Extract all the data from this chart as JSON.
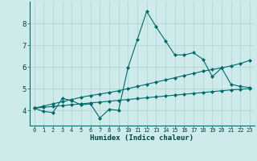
{
  "xlabel": "Humidex (Indice chaleur)",
  "ylabel": "",
  "bg_color": "#ceeaea",
  "line_color": "#006b6b",
  "grid_color": "#b8dada",
  "xlim": [
    -0.5,
    23.5
  ],
  "ylim": [
    3.3,
    9.0
  ],
  "yticks": [
    4,
    5,
    6,
    7,
    8
  ],
  "xticks": [
    0,
    1,
    2,
    3,
    4,
    5,
    6,
    7,
    8,
    9,
    10,
    11,
    12,
    13,
    14,
    15,
    16,
    17,
    18,
    19,
    20,
    21,
    22,
    23
  ],
  "line1_x": [
    0,
    1,
    2,
    3,
    4,
    5,
    6,
    7,
    8,
    9,
    10,
    11,
    12,
    13,
    14,
    15,
    16,
    17,
    18,
    19,
    20,
    21,
    22,
    23
  ],
  "line1_y": [
    4.1,
    3.95,
    3.9,
    4.55,
    4.45,
    4.25,
    4.3,
    3.65,
    4.05,
    4.0,
    5.95,
    7.25,
    8.55,
    7.85,
    7.2,
    6.55,
    6.55,
    6.65,
    6.35,
    5.55,
    5.95,
    5.2,
    5.1,
    5.05
  ],
  "line2_x": [
    0,
    1,
    2,
    3,
    4,
    5,
    6,
    7,
    8,
    9,
    10,
    11,
    12,
    13,
    14,
    15,
    16,
    17,
    18,
    19,
    20,
    21,
    22,
    23
  ],
  "line2_y": [
    4.1,
    4.2,
    4.3,
    4.4,
    4.5,
    4.6,
    4.68,
    4.75,
    4.82,
    4.9,
    5.0,
    5.1,
    5.2,
    5.3,
    5.4,
    5.5,
    5.6,
    5.7,
    5.8,
    5.88,
    5.95,
    6.05,
    6.15,
    6.3
  ],
  "line3_x": [
    0,
    1,
    2,
    3,
    4,
    5,
    6,
    7,
    8,
    9,
    10,
    11,
    12,
    13,
    14,
    15,
    16,
    17,
    18,
    19,
    20,
    21,
    22,
    23
  ],
  "line3_y": [
    4.1,
    4.14,
    4.18,
    4.22,
    4.26,
    4.3,
    4.34,
    4.38,
    4.42,
    4.46,
    4.5,
    4.54,
    4.58,
    4.62,
    4.66,
    4.7,
    4.74,
    4.78,
    4.82,
    4.86,
    4.9,
    4.94,
    4.97,
    5.0
  ]
}
